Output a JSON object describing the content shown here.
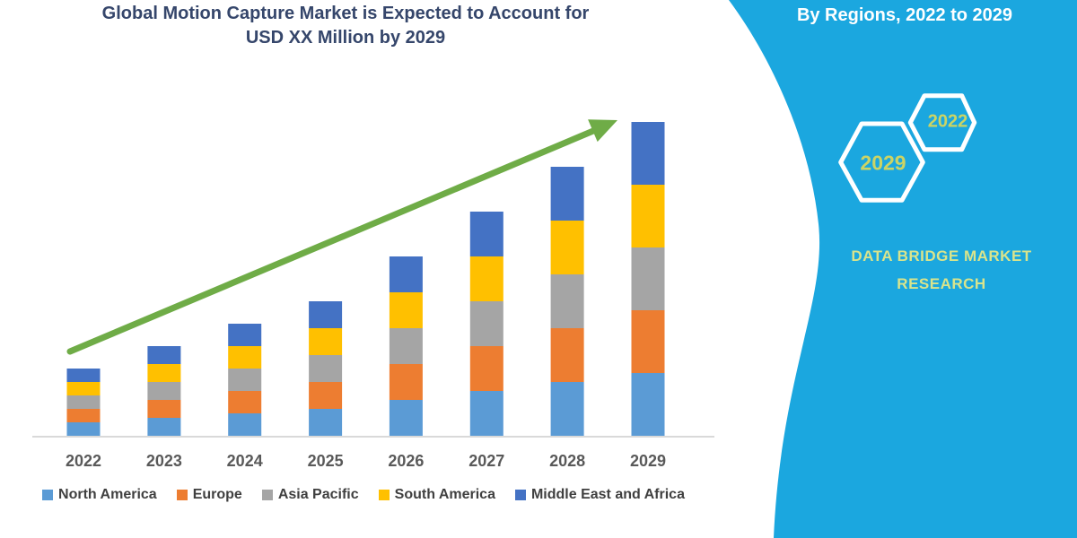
{
  "title": {
    "line1": "Global Motion Capture Market is Expected to Account for",
    "line2": "USD XX Million by 2029",
    "color": "#35466B"
  },
  "sidebar": {
    "heading": "By Regions, 2022 to 2029",
    "brand_line1": "DATA BRIDGE MARKET",
    "brand_line2": "RESEARCH",
    "background_color": "#1BA7DF",
    "heading_color": "#FFFFFF",
    "hexagon_outline_color": "#FFFFFF",
    "hexagon_year_color": "#CBD465",
    "brand_color": "#D9E48C",
    "hexagons": [
      {
        "year": "2022"
      },
      {
        "year": "2029"
      }
    ]
  },
  "chart_data": {
    "type": "bar",
    "stacked": true,
    "title": "Global Motion Capture Market is Expected to Account for USD XX Million by 2029",
    "xlabel": "",
    "ylabel": "",
    "y_axis_visible": false,
    "grid": false,
    "legend_position": "bottom",
    "categories": [
      "2022",
      "2023",
      "2024",
      "2025",
      "2026",
      "2027",
      "2028",
      "2029"
    ],
    "series": [
      {
        "name": "North America",
        "color": "#5B9BD5",
        "values": [
          15,
          20,
          25,
          30,
          40,
          50,
          60,
          70
        ]
      },
      {
        "name": "Europe",
        "color": "#ED7D31",
        "values": [
          15,
          20,
          25,
          30,
          40,
          50,
          60,
          70
        ]
      },
      {
        "name": "Asia Pacific",
        "color": "#A5A5A5",
        "values": [
          15,
          20,
          25,
          30,
          40,
          50,
          60,
          70
        ]
      },
      {
        "name": "South America",
        "color": "#FFC000",
        "values": [
          15,
          20,
          25,
          30,
          40,
          50,
          60,
          70
        ]
      },
      {
        "name": "Middle East and Africa",
        "color": "#4472C4",
        "values": [
          15,
          20,
          25,
          30,
          40,
          50,
          60,
          70
        ]
      }
    ],
    "stack_totals": [
      75,
      100,
      125,
      150,
      200,
      250,
      300,
      350
    ],
    "value_units": "relative units (values not labeled on chart; market sized as USD XX Million)",
    "trend_arrow": {
      "color": "#6FAC47",
      "direction": "up-right"
    },
    "axis_line_color": "#D9D9D9",
    "tick_label_color": "#595959"
  }
}
